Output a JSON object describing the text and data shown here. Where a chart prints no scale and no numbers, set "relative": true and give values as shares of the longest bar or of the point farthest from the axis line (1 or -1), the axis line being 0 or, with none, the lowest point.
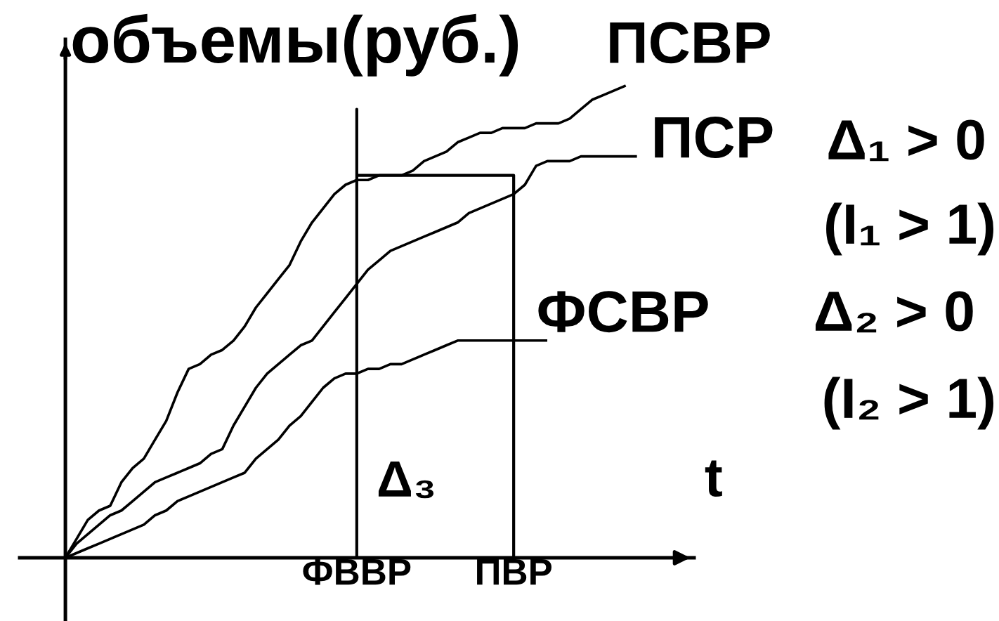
{
  "chart_data": {
    "type": "line",
    "relative": true,
    "ylabel": "объемы(руб.)",
    "xlabel": "t",
    "categories": [
      null,
      null,
      null,
      null,
      null,
      null,
      null,
      null,
      null,
      null,
      null,
      null,
      null,
      null,
      null,
      null,
      null,
      null,
      null,
      null,
      null,
      null,
      null,
      null,
      null,
      null,
      "ФВВР",
      null,
      null,
      null,
      null,
      null,
      null,
      null,
      null,
      null,
      null,
      null,
      null,
      null,
      "ПВР",
      null,
      null,
      null,
      null,
      null,
      null,
      null,
      null,
      null,
      null,
      null
    ],
    "series": [
      {
        "name": "ПСВР",
        "color": "#000000",
        "values": [
          0,
          0.04,
          0.08,
          0.1,
          0.11,
          0.16,
          0.19,
          0.21,
          0.25,
          0.29,
          0.35,
          0.4,
          0.41,
          0.43,
          0.44,
          0.46,
          0.49,
          0.53,
          0.56,
          0.59,
          0.62,
          0.67,
          0.71,
          0.74,
          0.77,
          0.79,
          0.8,
          0.8,
          0.81,
          0.81,
          0.81,
          0.82,
          0.84,
          0.85,
          0.86,
          0.88,
          0.89,
          0.9,
          0.9,
          0.91,
          0.91,
          0.91,
          0.92,
          0.92,
          0.92,
          0.93,
          0.95,
          0.97,
          0.98,
          0.99,
          1.0,
          null
        ]
      },
      {
        "name": "ПСР",
        "color": "#000000",
        "values": [
          0,
          0.03,
          0.05,
          0.07,
          0.09,
          0.1,
          0.12,
          0.14,
          0.16,
          0.17,
          0.18,
          0.19,
          0.2,
          0.22,
          0.23,
          0.28,
          0.32,
          0.36,
          0.39,
          0.41,
          0.43,
          0.45,
          0.46,
          0.49,
          0.52,
          0.55,
          0.58,
          0.61,
          0.63,
          0.65,
          0.66,
          0.67,
          0.68,
          0.69,
          0.7,
          0.71,
          0.73,
          0.74,
          0.75,
          0.76,
          0.77,
          0.79,
          0.83,
          0.84,
          0.84,
          0.84,
          0.85,
          0.85,
          0.85,
          0.85,
          0.85,
          0.85
        ]
      },
      {
        "name": "ФСВР",
        "color": "#000000",
        "values": [
          0,
          0.01,
          0.02,
          0.03,
          0.04,
          0.05,
          0.06,
          0.07,
          0.09,
          0.1,
          0.12,
          0.13,
          0.14,
          0.15,
          0.16,
          0.17,
          0.18,
          0.21,
          0.23,
          0.25,
          0.28,
          0.3,
          0.33,
          0.36,
          0.38,
          0.39,
          0.39,
          0.4,
          0.4,
          0.41,
          0.41,
          0.42,
          0.43,
          0.44,
          0.45,
          0.46,
          0.46,
          0.46,
          0.46,
          0.46,
          0.46,
          0.46,
          0.46,
          0.46,
          null,
          null,
          null,
          null,
          null,
          null,
          null,
          null
        ]
      },
      {
        "color": "#000000",
        "x": [
          "ФВВР",
          "ФВВР",
          "ФВВР",
          "ПВР",
          "ПВР"
        ],
        "values": [
          0,
          0.95,
          0.81,
          0.81,
          0
        ]
      }
    ],
    "annotations": [
      "Δ₁ > 0",
      "(I₁ > 1)",
      "Δ₂ > 0",
      "(I₂ > 1)",
      "Δ₃"
    ]
  }
}
